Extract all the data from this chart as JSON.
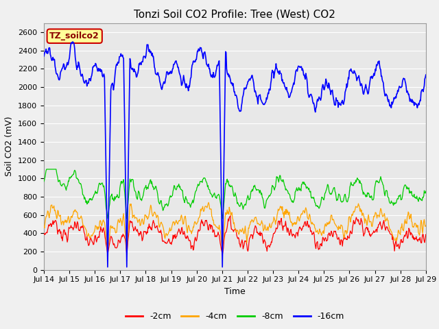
{
  "title": "Tonzi Soil CO2 Profile: Tree (West) CO2",
  "xlabel": "Time",
  "ylabel": "Soil CO2 (mV)",
  "ylim": [
    0,
    2700
  ],
  "xlim": [
    0,
    360
  ],
  "xtick_labels": [
    "Jul 14",
    "Jul 15",
    "Jul 16",
    "Jul 17",
    "Jul 18",
    "Jul 19",
    "Jul 20",
    "Jul 21",
    "Jul 22",
    "Jul 23",
    "Jul 24",
    "Jul 25",
    "Jul 26",
    "Jul 27",
    "Jul 28",
    "Jul 29"
  ],
  "legend_labels": [
    "-2cm",
    "-4cm",
    "-8cm",
    "-16cm"
  ],
  "legend_colors": [
    "#ff0000",
    "#ffa500",
    "#00cc00",
    "#0000ff"
  ],
  "line_colors": [
    "#ff0000",
    "#ffa500",
    "#00cc00",
    "#0000ff"
  ],
  "bg_color": "#e8e8e8",
  "fig_color": "#f0f0f0",
  "box_label": "TZ_soilco2",
  "box_facecolor": "#ffff99",
  "box_edgecolor": "#cc0000",
  "box_textcolor": "#8b0000",
  "yticks": [
    0,
    200,
    400,
    600,
    800,
    1000,
    1200,
    1400,
    1600,
    1800,
    2000,
    2200,
    2400,
    2600
  ],
  "title_fontsize": 11,
  "axis_fontsize": 9,
  "tick_fontsize": 8
}
